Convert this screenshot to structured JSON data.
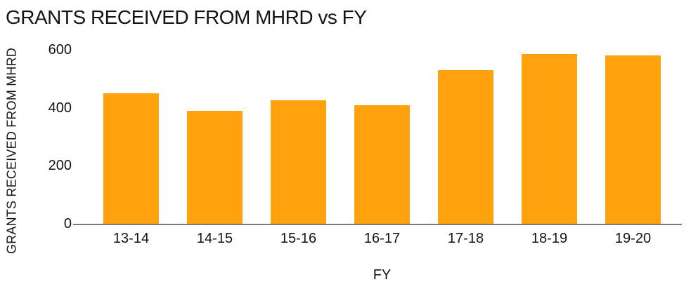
{
  "chart_data": {
    "type": "bar",
    "title": "GRANTS RECEIVED FROM MHRD vs FY",
    "xlabel": "FY",
    "ylabel": "GRANTS RECEIVED FROM MHRD",
    "categories": [
      "13-14",
      "14-15",
      "15-16",
      "16-17",
      "17-18",
      "18-19",
      "19-20"
    ],
    "values": [
      450,
      390,
      425,
      410,
      530,
      585,
      580
    ],
    "yticks": [
      0,
      200,
      400,
      600
    ],
    "ylim": [
      0,
      600
    ],
    "grid": false,
    "legend": "none",
    "colors": {
      "bar": "#ffa20d",
      "axis": "#7a7a7a",
      "text": "#141414",
      "background": "#ffffff"
    }
  }
}
